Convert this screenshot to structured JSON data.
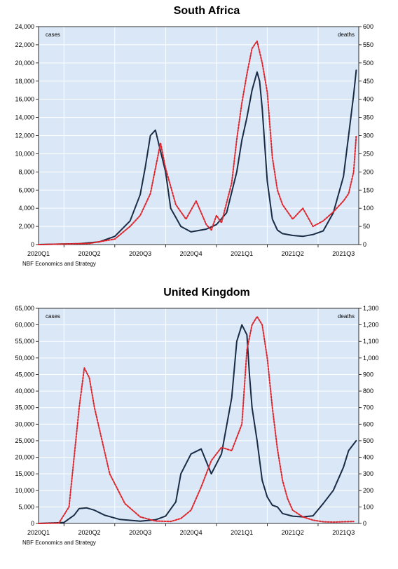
{
  "source_note": "NBF Economics and Strategy",
  "colors": {
    "cases": "#1a2c45",
    "deaths": "#e0242a",
    "plot_bg": "#d9e7f7",
    "grid": "#ffffff"
  },
  "chart_data": [
    {
      "type": "line",
      "title": "South Africa",
      "left_axis_label": "cases",
      "right_axis_label": "deaths",
      "x_ticks": [
        "2020Q1",
        "2020Q2",
        "2020Q3",
        "2020Q4",
        "2021Q1",
        "2021Q2",
        "2021Q3"
      ],
      "x_range": [
        0,
        6.3
      ],
      "y_left_range": [
        0,
        24000
      ],
      "y_left_ticks": [
        "0",
        "2,000",
        "4,000",
        "6,000",
        "8,000",
        "10,000",
        "12,000",
        "14,000",
        "16,000",
        "18,000",
        "20,000",
        "22,000",
        "24,000"
      ],
      "y_right_range": [
        0,
        600
      ],
      "y_right_ticks": [
        "0",
        "50",
        "100",
        "150",
        "200",
        "250",
        "300",
        "350",
        "400",
        "450",
        "500",
        "550",
        "600"
      ],
      "series": [
        {
          "name": "cases",
          "axis": "left",
          "style": "solid",
          "x": [
            0,
            0.8,
            1.2,
            1.5,
            1.8,
            2.0,
            2.1,
            2.2,
            2.3,
            2.5,
            2.6,
            2.8,
            3.0,
            3.3,
            3.5,
            3.7,
            3.9,
            4.0,
            4.1,
            4.2,
            4.3,
            4.35,
            4.4,
            4.5,
            4.6,
            4.7,
            4.8,
            5.0,
            5.2,
            5.4,
            5.6,
            5.8,
            6.0,
            6.1,
            6.2,
            6.25
          ],
          "y": [
            0,
            100,
            300,
            900,
            2600,
            5500,
            8500,
            12000,
            12600,
            8000,
            4000,
            2000,
            1400,
            1700,
            2200,
            3500,
            8000,
            11500,
            14000,
            17000,
            19000,
            18000,
            15000,
            7000,
            2800,
            1600,
            1200,
            1000,
            900,
            1100,
            1500,
            3500,
            7500,
            12000,
            16500,
            19200
          ]
        },
        {
          "name": "deaths",
          "axis": "right",
          "style": "dotted",
          "x": [
            0,
            1.0,
            1.5,
            1.8,
            2.0,
            2.2,
            2.4,
            2.5,
            2.7,
            2.9,
            3.1,
            3.3,
            3.4,
            3.5,
            3.6,
            3.8,
            3.9,
            4.0,
            4.1,
            4.2,
            4.3,
            4.4,
            4.5,
            4.6,
            4.7,
            4.8,
            5.0,
            5.2,
            5.4,
            5.6,
            5.8,
            6.0,
            6.1,
            6.2,
            6.25
          ],
          "y": [
            0,
            3,
            15,
            50,
            80,
            140,
            280,
            210,
            110,
            70,
            120,
            55,
            40,
            80,
            60,
            170,
            290,
            390,
            470,
            540,
            560,
            500,
            420,
            240,
            150,
            110,
            70,
            100,
            50,
            65,
            90,
            120,
            140,
            200,
            300
          ]
        }
      ]
    },
    {
      "type": "line",
      "title": "United Kingdom",
      "left_axis_label": "cases",
      "right_axis_label": "deaths",
      "x_ticks": [
        "2020Q1",
        "2020Q2",
        "2020Q3",
        "2020Q4",
        "2021Q1",
        "2021Q2",
        "2021Q3"
      ],
      "x_range": [
        0,
        6.3
      ],
      "y_left_range": [
        0,
        65000
      ],
      "y_left_ticks": [
        "0",
        "5,000",
        "10,000",
        "15,000",
        "20,000",
        "25,000",
        "30,000",
        "35,000",
        "40,000",
        "45,000",
        "50,000",
        "55,000",
        "60,000",
        "65,000"
      ],
      "y_right_range": [
        0,
        1300
      ],
      "y_right_ticks": [
        "0",
        "100",
        "200",
        "300",
        "400",
        "500",
        "600",
        "700",
        "800",
        "900",
        "1,000",
        "1,100",
        "1,200",
        "1,300"
      ],
      "series": [
        {
          "name": "cases",
          "axis": "left",
          "style": "solid",
          "x": [
            0,
            0.5,
            0.7,
            0.8,
            0.95,
            1.1,
            1.3,
            1.6,
            2.0,
            2.3,
            2.5,
            2.7,
            2.8,
            3.0,
            3.2,
            3.4,
            3.6,
            3.8,
            3.9,
            4.0,
            4.1,
            4.15,
            4.2,
            4.3,
            4.4,
            4.5,
            4.6,
            4.7,
            4.8,
            5.0,
            5.1,
            5.2,
            5.4,
            5.6,
            5.8,
            6.0,
            6.1,
            6.2,
            6.25
          ],
          "y": [
            0,
            300,
            2500,
            4500,
            4700,
            4000,
            2500,
            1200,
            700,
            1100,
            2200,
            6500,
            15000,
            21000,
            22500,
            15000,
            21000,
            38000,
            55000,
            60000,
            57000,
            45000,
            35000,
            25000,
            13000,
            8000,
            5500,
            5000,
            3000,
            2200,
            2100,
            2000,
            2300,
            6000,
            10000,
            17000,
            22000,
            24000,
            25000
          ]
        },
        {
          "name": "deaths",
          "axis": "right",
          "style": "dotted",
          "x": [
            0,
            0.4,
            0.6,
            0.8,
            0.9,
            1.0,
            1.1,
            1.4,
            1.7,
            2.0,
            2.3,
            2.6,
            2.8,
            3.0,
            3.2,
            3.4,
            3.6,
            3.8,
            4.0,
            4.1,
            4.2,
            4.3,
            4.4,
            4.5,
            4.6,
            4.7,
            4.8,
            4.9,
            5.0,
            5.2,
            5.4,
            5.6,
            5.8,
            6.0,
            6.2
          ],
          "y": [
            0,
            2,
            100,
            700,
            940,
            880,
            700,
            300,
            120,
            40,
            15,
            12,
            30,
            80,
            220,
            380,
            460,
            440,
            600,
            1050,
            1200,
            1250,
            1200,
            1000,
            700,
            450,
            260,
            150,
            80,
            40,
            20,
            10,
            8,
            10,
            12
          ]
        }
      ]
    }
  ]
}
